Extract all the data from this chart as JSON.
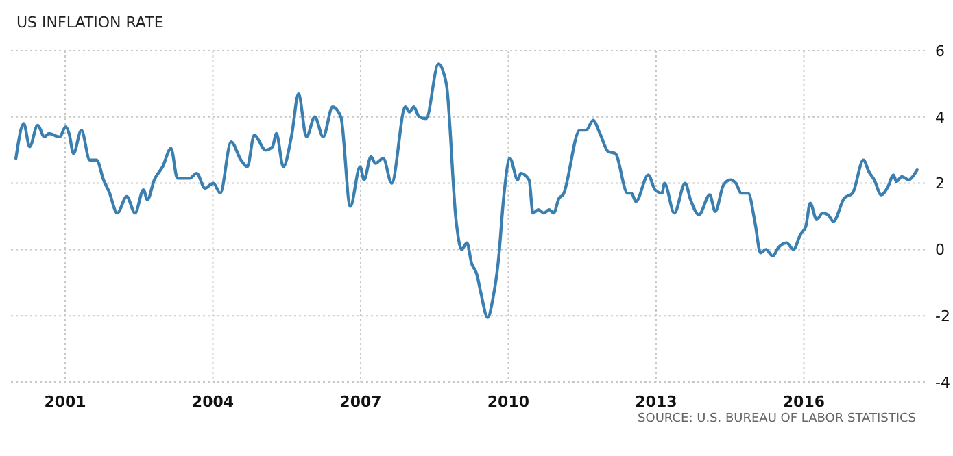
{
  "chart_data": {
    "type": "line",
    "title": "US INFLATION RATE",
    "annotations": [
      "SOURCE: U.S. BUREAU OF LABOR STATISTICS"
    ],
    "x": [
      2000.0,
      2000.16,
      2000.28,
      2000.44,
      2000.58,
      2000.67,
      2000.89,
      2001.01,
      2001.08,
      2001.17,
      2001.33,
      2001.5,
      2001.64,
      2001.78,
      2001.89,
      2002.06,
      2002.25,
      2002.42,
      2002.59,
      2002.67,
      2002.81,
      2002.98,
      2003.15,
      2003.28,
      2003.53,
      2003.67,
      2003.84,
      2004.01,
      2004.15,
      2004.37,
      2004.57,
      2004.7,
      2004.84,
      2005.07,
      2005.21,
      2005.29,
      2005.43,
      2005.6,
      2005.74,
      2005.9,
      2006.07,
      2006.24,
      2006.43,
      2006.6,
      2006.79,
      2006.99,
      2007.07,
      2007.21,
      2007.3,
      2007.46,
      2007.63,
      2007.91,
      2007.99,
      2008.08,
      2008.19,
      2008.33,
      2008.58,
      2008.74,
      2008.94,
      2009.05,
      2009.16,
      2009.25,
      2009.36,
      2009.44,
      2009.58,
      2009.69,
      2009.8,
      2009.91,
      2010.03,
      2010.19,
      2010.25,
      2010.42,
      2010.5,
      2010.61,
      2010.72,
      2010.83,
      2010.92,
      2011.03,
      2011.11,
      2011.45,
      2011.58,
      2011.72,
      2011.86,
      2012.03,
      2012.17,
      2012.42,
      2012.5,
      2012.59,
      2012.84,
      2012.98,
      2013.12,
      2013.17,
      2013.37,
      2013.59,
      2013.7,
      2013.87,
      2014.09,
      2014.2,
      2014.37,
      2014.51,
      2014.62,
      2014.73,
      2014.87,
      2015.01,
      2015.12,
      2015.23,
      2015.37,
      2015.48,
      2015.65,
      2015.79,
      2015.93,
      2016.04,
      2016.13,
      2016.26,
      2016.38,
      2016.49,
      2016.6,
      2016.82,
      2016.99,
      2017.21,
      2017.32,
      2017.43,
      2017.57,
      2017.71,
      2017.82,
      2017.88,
      2017.99,
      2018.13,
      2018.21,
      2018.3
    ],
    "series": [
      {
        "color": "#3a7fb0",
        "values": [
          2.75,
          3.8,
          3.1,
          3.75,
          3.4,
          3.5,
          3.4,
          3.7,
          3.5,
          2.9,
          3.6,
          2.7,
          2.7,
          2.1,
          1.75,
          1.1,
          1.6,
          1.1,
          1.8,
          1.5,
          2.1,
          2.5,
          3.05,
          2.15,
          2.15,
          2.3,
          1.85,
          2.0,
          1.7,
          3.25,
          2.7,
          2.5,
          3.45,
          3.0,
          3.1,
          3.5,
          2.5,
          3.45,
          4.7,
          3.4,
          4.0,
          3.4,
          4.3,
          4.0,
          1.3,
          2.5,
          2.1,
          2.8,
          2.6,
          2.75,
          2.0,
          4.3,
          4.15,
          4.3,
          4.0,
          3.95,
          5.6,
          5.0,
          0.85,
          0.0,
          0.2,
          -0.4,
          -0.75,
          -1.3,
          -2.05,
          -1.45,
          -0.3,
          1.65,
          2.75,
          2.1,
          2.3,
          2.1,
          1.1,
          1.2,
          1.1,
          1.2,
          1.1,
          1.55,
          1.65,
          3.6,
          3.6,
          3.9,
          3.5,
          2.95,
          2.9,
          1.7,
          1.7,
          1.45,
          2.25,
          1.8,
          1.7,
          2.0,
          1.1,
          2.0,
          1.5,
          1.05,
          1.65,
          1.15,
          1.95,
          2.1,
          2.0,
          1.7,
          1.7,
          0.8,
          -0.1,
          0.0,
          -0.2,
          0.05,
          0.2,
          0.0,
          0.45,
          0.7,
          1.4,
          0.9,
          1.1,
          1.05,
          0.85,
          1.55,
          1.7,
          2.7,
          2.35,
          2.1,
          1.65,
          1.9,
          2.25,
          2.05,
          2.2,
          2.1,
          2.2,
          2.4
        ]
      }
    ],
    "xlim": [
      1999.9,
      2018.5
    ],
    "xticks": [
      2001,
      2004,
      2007,
      2010,
      2013,
      2016
    ],
    "ylim": [
      -4,
      6
    ],
    "yticks": [
      -4,
      -2,
      0,
      2,
      4,
      6
    ],
    "grid": true
  }
}
